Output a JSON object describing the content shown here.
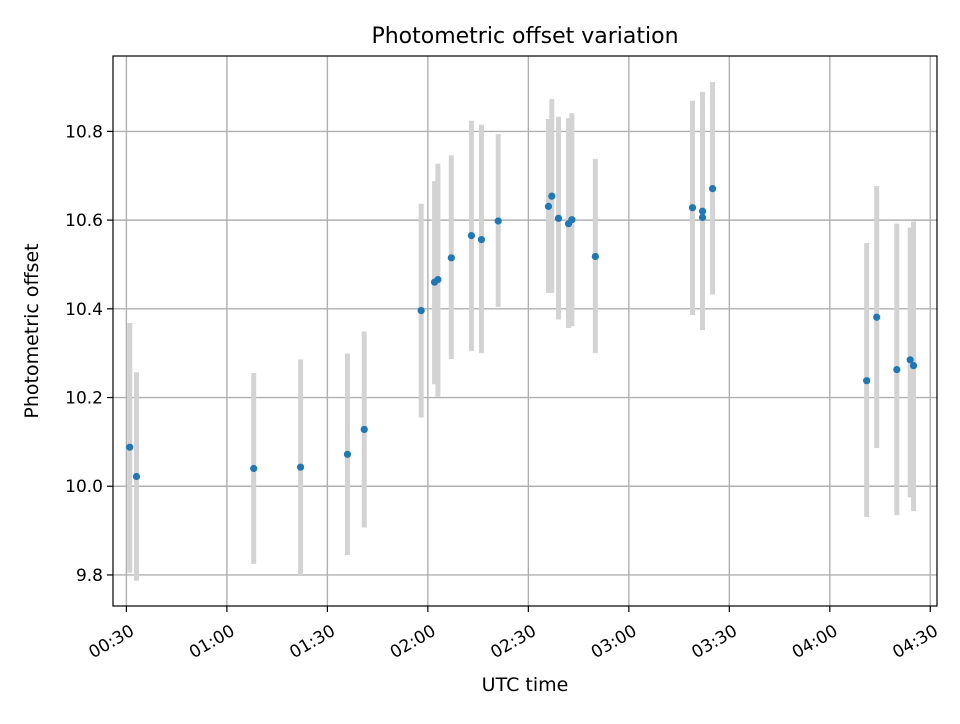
{
  "chart_data": {
    "type": "scatter",
    "title": "Photometric offset variation",
    "xlabel": "UTC time",
    "ylabel": "Photometric offset",
    "x_unit": "UTC clock time (HH:MM)",
    "xlim": [
      "00:26",
      "04:32"
    ],
    "ylim": [
      9.73,
      10.97
    ],
    "x_ticks": [
      "00:30",
      "01:00",
      "01:30",
      "02:00",
      "02:30",
      "03:00",
      "03:30",
      "04:00",
      "04:30"
    ],
    "y_ticks": [
      "9.8",
      "10.0",
      "10.2",
      "10.4",
      "10.6",
      "10.8"
    ],
    "grid": true,
    "legend": "none",
    "colors": {
      "points": "#1f77b4",
      "error_bars": "#d3d3d3",
      "grid": "#b0b0b0"
    },
    "series": [
      {
        "points": [
          {
            "x": "00:31",
            "y": 10.088,
            "ylow": 9.805,
            "yhigh": 10.368
          },
          {
            "x": "00:33",
            "y": 10.022,
            "ylow": 9.787,
            "yhigh": 10.257
          },
          {
            "x": "01:08",
            "y": 10.04,
            "ylow": 9.825,
            "yhigh": 10.255
          },
          {
            "x": "01:22",
            "y": 10.043,
            "ylow": 9.8,
            "yhigh": 10.286
          },
          {
            "x": "01:36",
            "y": 10.072,
            "ylow": 9.845,
            "yhigh": 10.299
          },
          {
            "x": "01:41",
            "y": 10.128,
            "ylow": 9.907,
            "yhigh": 10.349
          },
          {
            "x": "01:58",
            "y": 10.396,
            "ylow": 10.155,
            "yhigh": 10.637
          },
          {
            "x": "02:02",
            "y": 10.46,
            "ylow": 10.23,
            "yhigh": 10.688
          },
          {
            "x": "02:03",
            "y": 10.466,
            "ylow": 10.202,
            "yhigh": 10.727
          },
          {
            "x": "02:07",
            "y": 10.515,
            "ylow": 10.287,
            "yhigh": 10.746
          },
          {
            "x": "02:13",
            "y": 10.565,
            "ylow": 10.305,
            "yhigh": 10.824
          },
          {
            "x": "02:16",
            "y": 10.556,
            "ylow": 10.3,
            "yhigh": 10.815
          },
          {
            "x": "02:21",
            "y": 10.598,
            "ylow": 10.404,
            "yhigh": 10.794
          },
          {
            "x": "02:36",
            "y": 10.631,
            "ylow": 10.436,
            "yhigh": 10.828
          },
          {
            "x": "02:37",
            "y": 10.654,
            "ylow": 10.436,
            "yhigh": 10.873
          },
          {
            "x": "02:39",
            "y": 10.604,
            "ylow": 10.376,
            "yhigh": 10.833
          },
          {
            "x": "02:42",
            "y": 10.592,
            "ylow": 10.357,
            "yhigh": 10.83
          },
          {
            "x": "02:43",
            "y": 10.601,
            "ylow": 10.361,
            "yhigh": 10.841
          },
          {
            "x": "02:50",
            "y": 10.518,
            "ylow": 10.3,
            "yhigh": 10.738
          },
          {
            "x": "03:19",
            "y": 10.628,
            "ylow": 10.386,
            "yhigh": 10.869
          },
          {
            "x": "03:22",
            "y": 10.606,
            "ylow": 10.361,
            "yhigh": 10.853
          },
          {
            "x": "03:22",
            "y": 10.62,
            "ylow": 10.352,
            "yhigh": 10.889
          },
          {
            "x": "03:25",
            "y": 10.671,
            "ylow": 10.432,
            "yhigh": 10.911
          },
          {
            "x": "04:11",
            "y": 10.238,
            "ylow": 9.931,
            "yhigh": 10.548
          },
          {
            "x": "04:14",
            "y": 10.381,
            "ylow": 10.086,
            "yhigh": 10.677
          },
          {
            "x": "04:20",
            "y": 10.263,
            "ylow": 9.935,
            "yhigh": 10.592
          },
          {
            "x": "04:24",
            "y": 10.285,
            "ylow": 9.975,
            "yhigh": 10.583
          },
          {
            "x": "04:25",
            "y": 10.272,
            "ylow": 9.944,
            "yhigh": 10.597
          }
        ]
      }
    ]
  }
}
